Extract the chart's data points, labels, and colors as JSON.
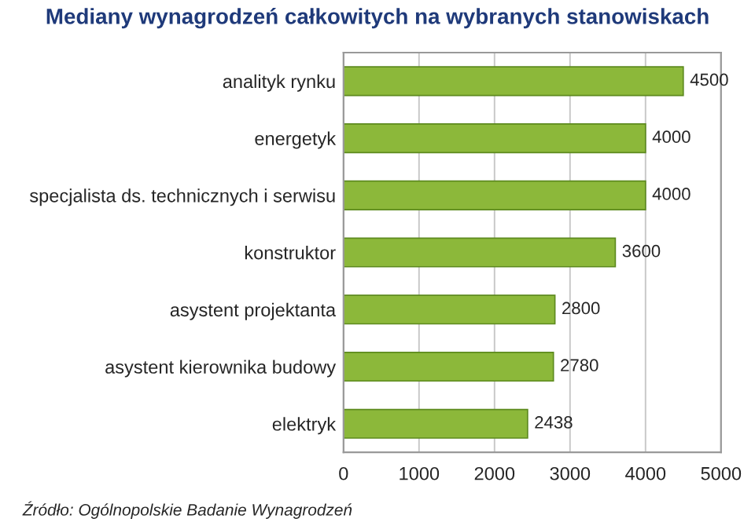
{
  "chart_data": {
    "type": "bar",
    "orientation": "horizontal",
    "title": "Mediany wynagrodzeń całkowitych na wybranych stanowiskach",
    "categories": [
      "analityk rynku",
      "energetyk",
      "specjalista ds. technicznych i serwisu",
      "konstruktor",
      "asystent projektanta",
      "asystent kierownika budowy",
      "elektryk"
    ],
    "values": [
      4500,
      4000,
      4000,
      3600,
      2800,
      2780,
      2438
    ],
    "color": "#8cb83a",
    "xlim": [
      0,
      5000
    ],
    "xticks": [
      0,
      1000,
      2000,
      3000,
      4000,
      5000
    ],
    "grid": "x",
    "data_labels": true,
    "annotations": [
      "Źródło: Ogólnopolskie Badanie Wynagrodzeń"
    ]
  }
}
